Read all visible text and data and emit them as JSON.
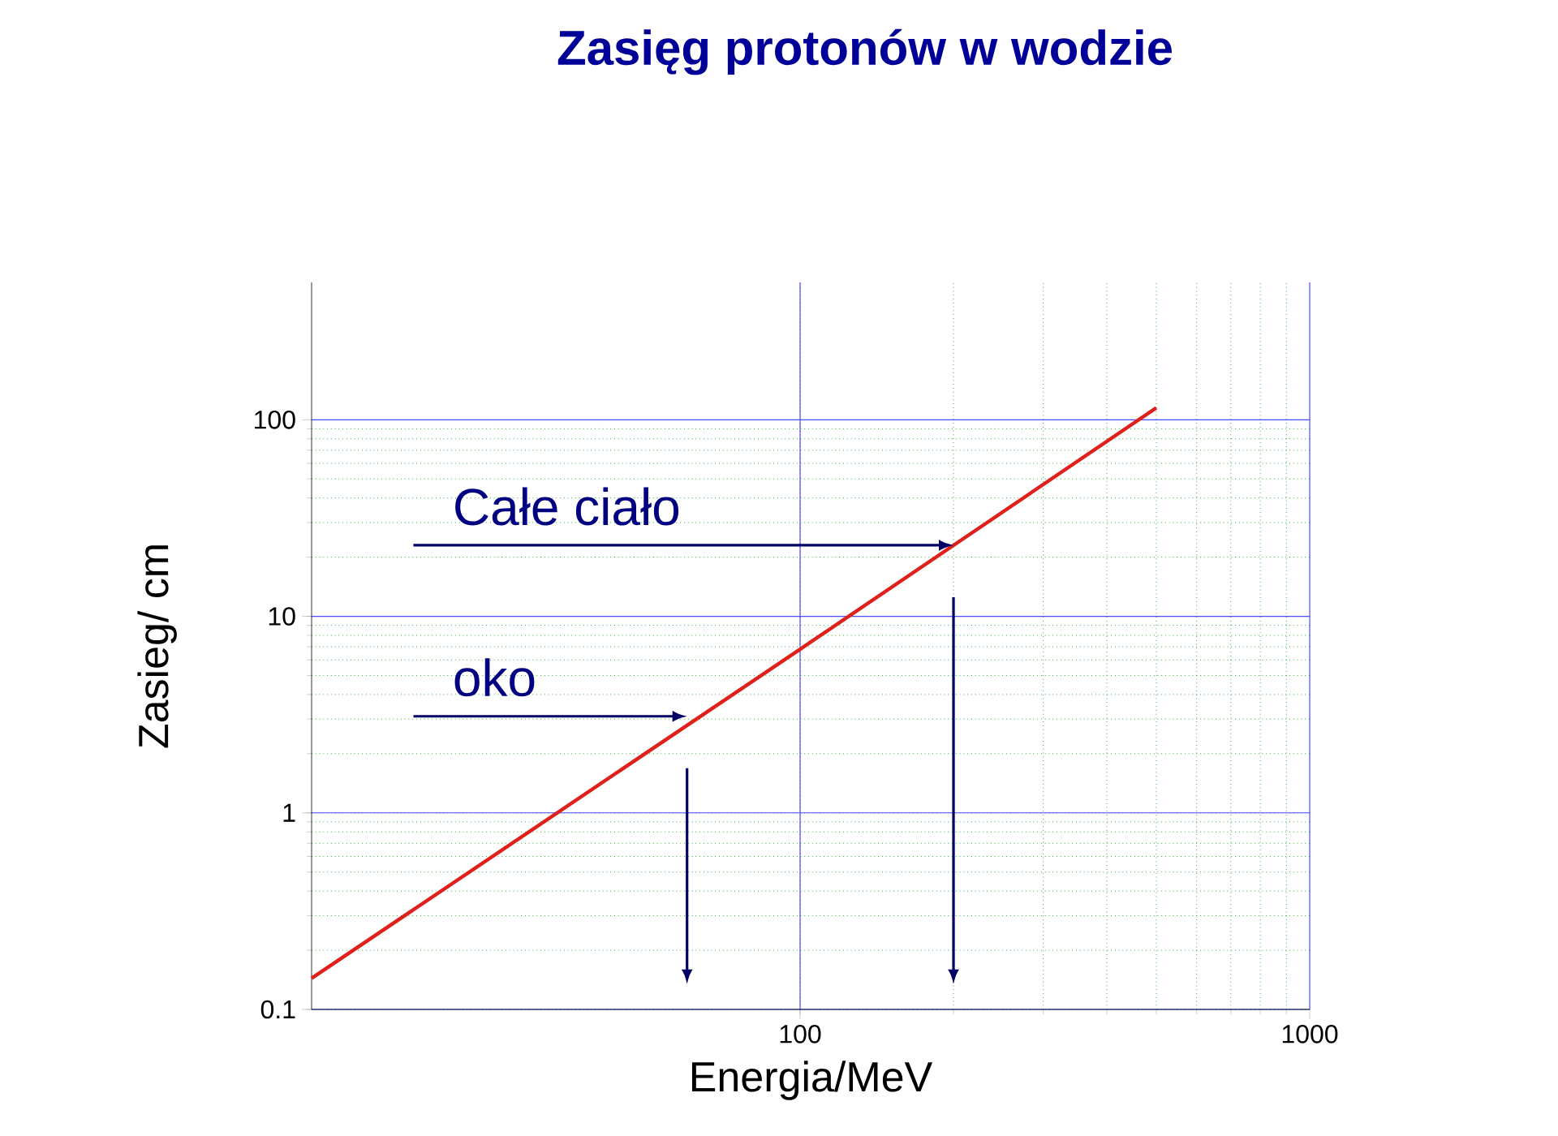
{
  "chart_data": {
    "type": "line",
    "title": "Zasięg protonów w wodzie",
    "xlabel": "Energia/MeV",
    "ylabel": "Zasieg/ cm",
    "log": "xy",
    "xlim": [
      11,
      1000
    ],
    "ylim": [
      0.1,
      500
    ],
    "xticks": [
      100,
      1000
    ],
    "yticks": [
      0.1,
      1,
      10,
      100
    ],
    "grid": true,
    "x": [
      11,
      100,
      500
    ],
    "series": [
      {
        "color": "#e0201b",
        "values": [
          0.144,
          6.8,
          115
        ]
      }
    ],
    "annotations": [
      {
        "text": "Całe ciało",
        "x": 200,
        "y": 23
      },
      {
        "text": "oko",
        "x": 60,
        "y": 3.1
      }
    ]
  }
}
